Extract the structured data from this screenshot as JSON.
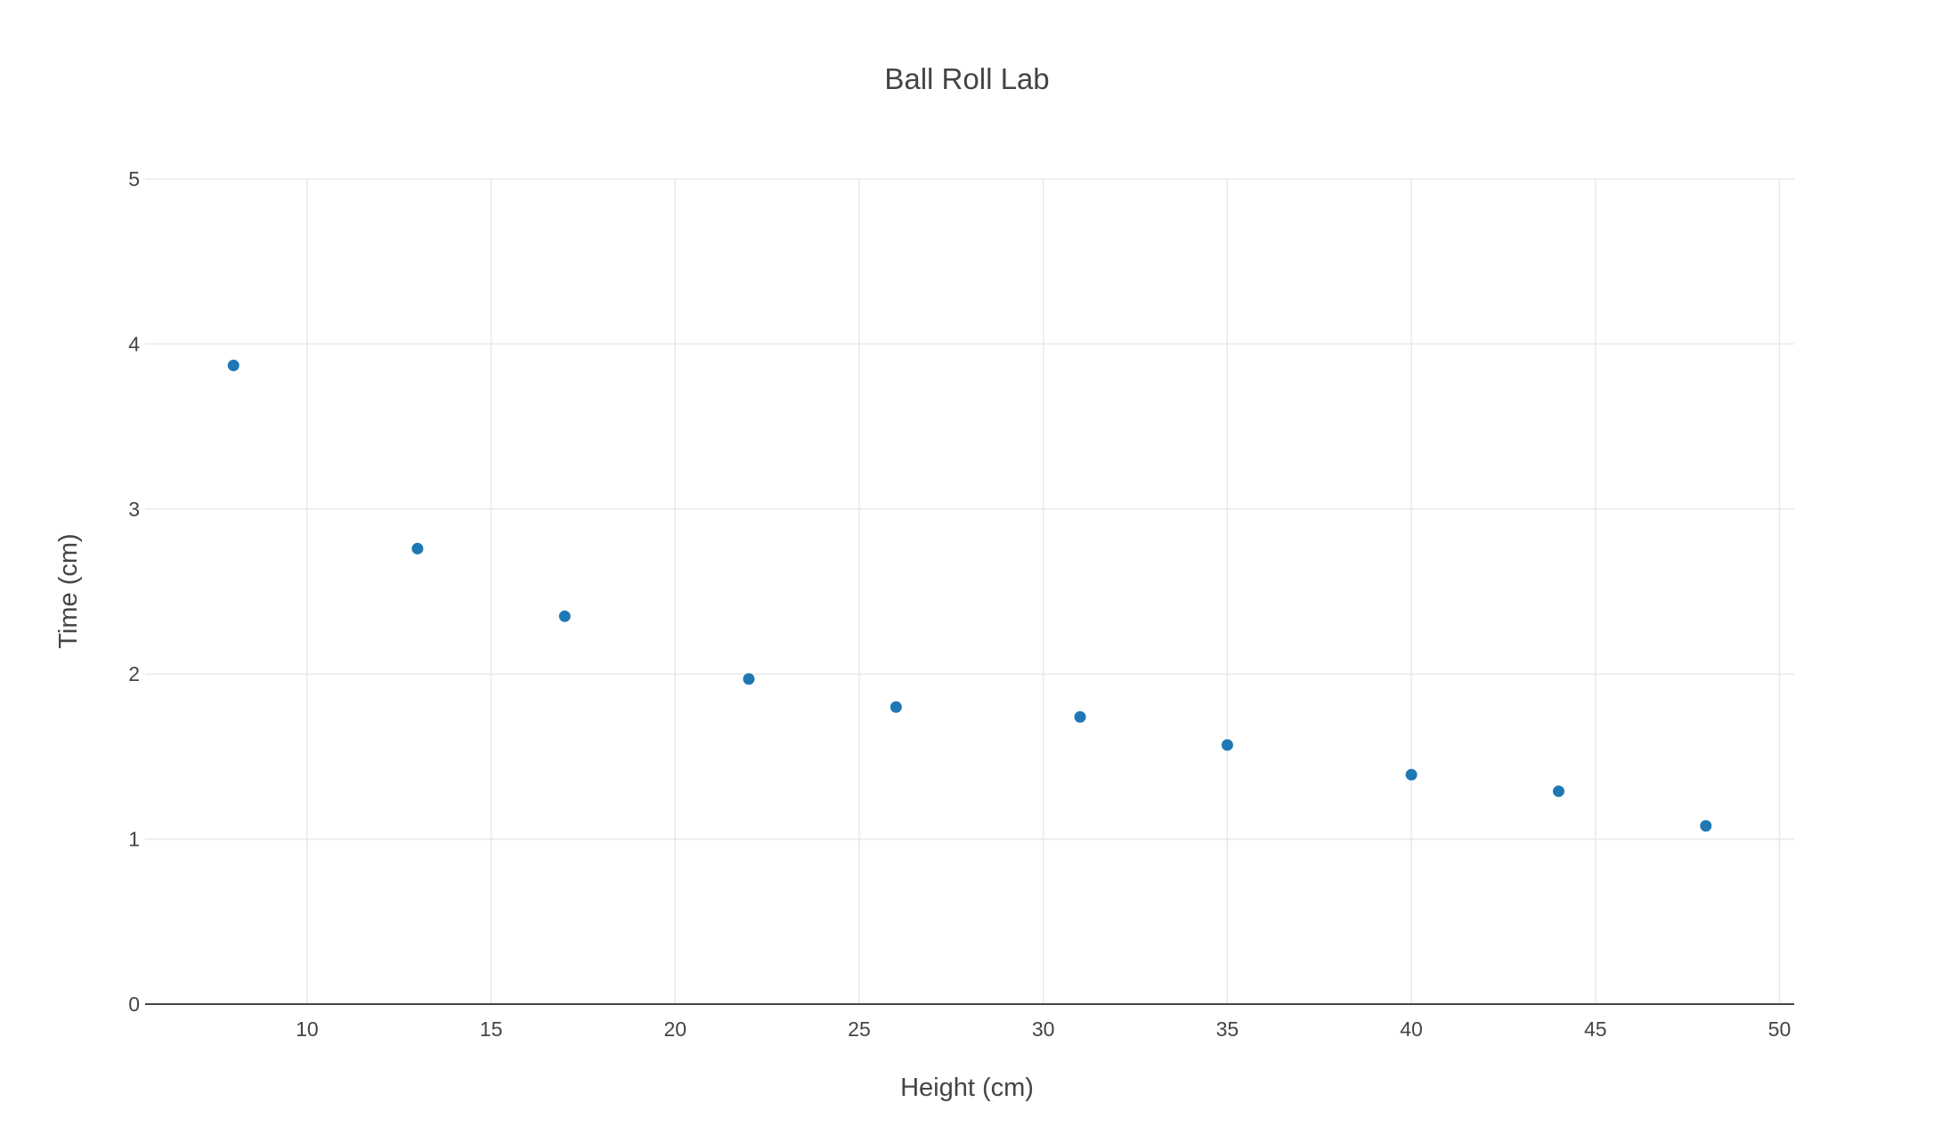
{
  "chart_data": {
    "type": "scatter",
    "title": "Ball Roll Lab",
    "xlabel": "Height (cm)",
    "ylabel": "Time (cm)",
    "x": [
      8,
      13,
      17,
      22,
      26,
      31,
      35,
      40,
      44,
      48
    ],
    "y": [
      3.87,
      2.76,
      2.35,
      1.97,
      1.8,
      1.74,
      1.57,
      1.39,
      1.29,
      1.08
    ],
    "xlim": [
      5.6,
      50.4
    ],
    "ylim": [
      0,
      5
    ],
    "x_ticks": [
      "10",
      "15",
      "20",
      "25",
      "30",
      "35",
      "40",
      "45",
      "50"
    ],
    "y_ticks": [
      "0",
      "1",
      "2",
      "3",
      "4",
      "5"
    ],
    "grid": true,
    "legend": "none",
    "marker_color": "#1f77b4"
  }
}
